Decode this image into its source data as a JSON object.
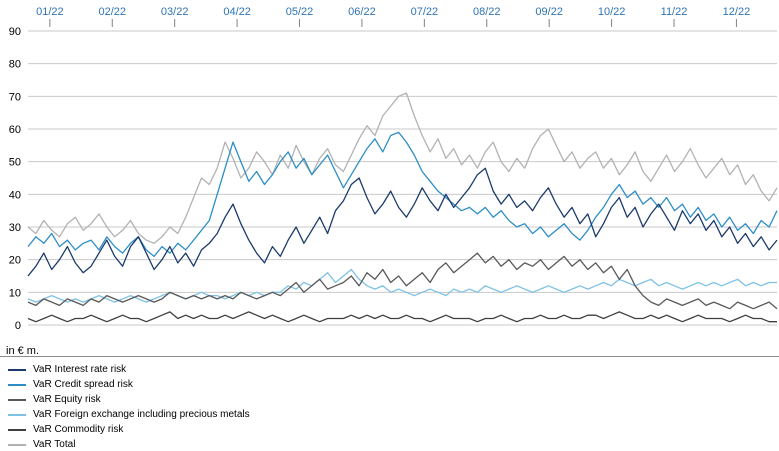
{
  "chart_data": {
    "type": "line",
    "title": "",
    "xlabel": "",
    "ylabel": "in € m.",
    "ylim": [
      0,
      90
    ],
    "yticks": [
      0,
      10,
      20,
      30,
      40,
      50,
      60,
      70,
      80,
      90
    ],
    "grid": true,
    "legend_position": "bottom",
    "x_tick_labels": [
      "01/22",
      "02/22",
      "03/22",
      "04/22",
      "05/22",
      "06/22",
      "07/22",
      "08/22",
      "09/22",
      "10/22",
      "11/22",
      "12/22"
    ],
    "axis_colors": {
      "x_tick_label": "#2e74b5",
      "y_tick_label": "#000000",
      "gridline": "#c9c9c9",
      "tick_mark": "#808080"
    },
    "series": [
      {
        "name": "VaR Interest rate risk",
        "color": "#1b3a6b",
        "values": [
          15,
          18,
          22,
          17,
          20,
          24,
          19,
          16,
          18,
          22,
          26,
          21,
          18,
          24,
          27,
          22,
          17,
          20,
          24,
          19,
          22,
          18,
          23,
          25,
          28,
          33,
          37,
          31,
          26,
          22,
          19,
          24,
          21,
          26,
          30,
          25,
          29,
          33,
          28,
          35,
          38,
          43,
          45,
          39,
          34,
          37,
          41,
          36,
          33,
          37,
          42,
          38,
          35,
          40,
          36,
          39,
          42,
          46,
          48,
          41,
          37,
          40,
          36,
          38,
          35,
          39,
          42,
          37,
          33,
          36,
          31,
          34,
          27,
          31,
          36,
          39,
          33,
          36,
          30,
          34,
          37,
          33,
          29,
          35,
          31,
          34,
          29,
          32,
          27,
          30,
          25,
          28,
          24,
          27,
          23,
          26
        ]
      },
      {
        "name": "VaR Credit spread risk",
        "color": "#2d8ec7",
        "values": [
          24,
          27,
          25,
          28,
          24,
          26,
          23,
          25,
          26,
          23,
          27,
          24,
          22,
          25,
          27,
          23,
          21,
          24,
          22,
          25,
          23,
          26,
          29,
          32,
          40,
          48,
          56,
          50,
          44,
          47,
          43,
          46,
          50,
          53,
          48,
          51,
          46,
          49,
          52,
          47,
          42,
          46,
          50,
          54,
          57,
          53,
          58,
          59,
          56,
          52,
          47,
          44,
          41,
          39,
          37,
          35,
          36,
          34,
          36,
          33,
          35,
          32,
          30,
          31,
          28,
          30,
          27,
          29,
          31,
          28,
          26,
          29,
          33,
          36,
          40,
          43,
          39,
          41,
          37,
          39,
          36,
          39,
          35,
          37,
          33,
          36,
          32,
          34,
          30,
          33,
          29,
          31,
          28,
          32,
          30,
          35
        ]
      },
      {
        "name": "VaR Equity risk",
        "color": "#595959",
        "values": [
          7,
          6,
          8,
          7,
          6,
          8,
          7,
          6,
          8,
          7,
          9,
          8,
          7,
          8,
          9,
          8,
          7,
          8,
          10,
          9,
          8,
          9,
          8,
          9,
          8,
          9,
          8,
          10,
          9,
          8,
          9,
          10,
          9,
          11,
          13,
          10,
          12,
          14,
          11,
          12,
          13,
          15,
          12,
          16,
          14,
          17,
          13,
          15,
          12,
          14,
          16,
          13,
          17,
          19,
          16,
          18,
          20,
          22,
          19,
          21,
          18,
          20,
          17,
          19,
          18,
          20,
          17,
          19,
          21,
          18,
          20,
          17,
          19,
          16,
          18,
          14,
          17,
          12,
          9,
          7,
          6,
          8,
          7,
          6,
          7,
          8,
          6,
          7,
          6,
          5,
          7,
          6,
          5,
          6,
          7,
          5
        ]
      },
      {
        "name": "VaR Foreign exchange including precious metals",
        "color": "#7ec2e5",
        "values": [
          8,
          7,
          8,
          9,
          8,
          7,
          8,
          7,
          8,
          9,
          8,
          7,
          8,
          9,
          8,
          7,
          8,
          9,
          10,
          9,
          8,
          9,
          10,
          9,
          9,
          8,
          9,
          10,
          9,
          10,
          9,
          10,
          10,
          12,
          11,
          13,
          12,
          14,
          16,
          13,
          15,
          17,
          14,
          12,
          11,
          12,
          10,
          11,
          10,
          9,
          10,
          11,
          10,
          9,
          11,
          10,
          11,
          10,
          12,
          11,
          10,
          11,
          12,
          11,
          10,
          11,
          12,
          11,
          10,
          11,
          12,
          11,
          12,
          13,
          12,
          14,
          13,
          12,
          13,
          14,
          12,
          13,
          12,
          11,
          12,
          13,
          12,
          13,
          12,
          13,
          14,
          12,
          13,
          12,
          13,
          13
        ]
      },
      {
        "name": "VaR Commodity risk",
        "color": "#3f3f3f",
        "values": [
          2,
          1,
          2,
          3,
          2,
          1,
          2,
          2,
          3,
          2,
          1,
          2,
          3,
          2,
          2,
          1,
          2,
          3,
          4,
          2,
          3,
          2,
          3,
          2,
          2,
          3,
          2,
          3,
          4,
          3,
          2,
          3,
          2,
          1,
          2,
          3,
          2,
          1,
          2,
          2,
          2,
          3,
          2,
          3,
          2,
          3,
          2,
          2,
          3,
          2,
          2,
          1,
          2,
          3,
          2,
          2,
          2,
          1,
          2,
          2,
          3,
          2,
          1,
          2,
          2,
          3,
          2,
          2,
          3,
          2,
          2,
          3,
          3,
          2,
          3,
          4,
          3,
          2,
          2,
          3,
          2,
          3,
          2,
          1,
          2,
          3,
          2,
          2,
          2,
          1,
          2,
          3,
          2,
          2,
          1,
          1
        ]
      },
      {
        "name": "VaR Total",
        "color": "#b2b2b2",
        "values": [
          30,
          28,
          32,
          29,
          27,
          31,
          33,
          29,
          31,
          34,
          30,
          27,
          29,
          32,
          28,
          26,
          25,
          27,
          30,
          28,
          33,
          39,
          45,
          43,
          48,
          56,
          51,
          45,
          48,
          53,
          50,
          46,
          52,
          48,
          55,
          50,
          46,
          51,
          54,
          49,
          47,
          52,
          57,
          61,
          58,
          64,
          67,
          70,
          71,
          64,
          58,
          53,
          57,
          51,
          54,
          49,
          52,
          48,
          53,
          56,
          50,
          47,
          51,
          48,
          54,
          58,
          60,
          55,
          50,
          53,
          48,
          51,
          53,
          48,
          51,
          46,
          49,
          53,
          47,
          44,
          48,
          52,
          47,
          50,
          54,
          49,
          45,
          48,
          51,
          46,
          49,
          43,
          46,
          41,
          38,
          42
        ]
      }
    ]
  }
}
